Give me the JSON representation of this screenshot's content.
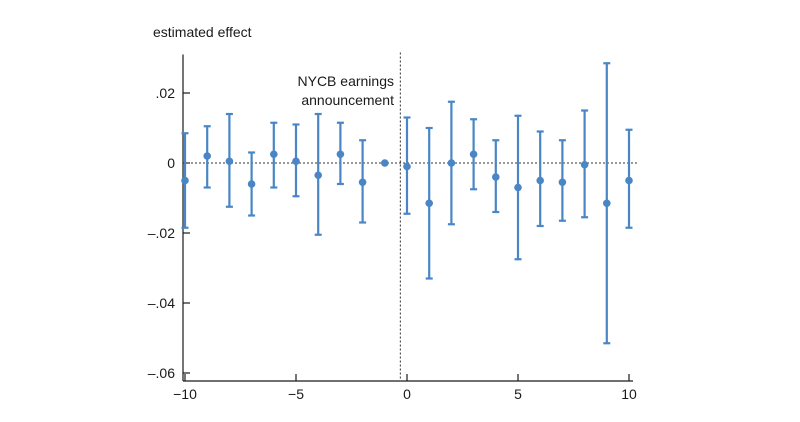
{
  "chart_data": {
    "type": "scatter",
    "title": "",
    "ylabel": "estimated effect",
    "xlabel": "",
    "xlim": [
      -10,
      10
    ],
    "ylim": [
      -0.062,
      0.031
    ],
    "x_ticks": [
      -10,
      -5,
      0,
      5,
      10
    ],
    "x_tick_labels": [
      "−10",
      "−5",
      "0",
      "5",
      "10"
    ],
    "y_ticks": [
      0.02,
      0,
      -0.02,
      -0.04,
      -0.06
    ],
    "y_tick_labels": [
      ".02",
      "0",
      "–.02",
      "–.04",
      "–.06"
    ],
    "reference_line": {
      "y": 0,
      "style": "dotted"
    },
    "event_line": {
      "x": -0.3,
      "style": "dotted"
    },
    "annotation": [
      "NYCB earnings",
      "announcement"
    ],
    "color": "#4a86c5",
    "series": [
      {
        "x": [
          -10,
          -9,
          -8,
          -7,
          -6,
          -5,
          -4,
          -3,
          -2,
          -1,
          0,
          1,
          2,
          3,
          4,
          5,
          6,
          7,
          8,
          9,
          10
        ],
        "y": [
          -0.005,
          0.002,
          0.0005,
          -0.006,
          0.0025,
          0.0005,
          -0.0035,
          0.0025,
          -0.0055,
          0.0,
          -0.001,
          -0.0115,
          0.0,
          0.0025,
          -0.004,
          -0.007,
          -0.005,
          -0.0055,
          -0.0005,
          -0.0115,
          -0.005
        ],
        "lower": [
          -0.0185,
          -0.007,
          -0.0125,
          -0.015,
          -0.007,
          -0.0095,
          -0.0205,
          -0.006,
          -0.017,
          0.0,
          -0.0145,
          -0.033,
          -0.0175,
          -0.0075,
          -0.014,
          -0.0275,
          -0.018,
          -0.0165,
          -0.0155,
          -0.0515,
          -0.0185
        ],
        "upper": [
          0.0085,
          0.0105,
          0.014,
          0.003,
          0.0115,
          0.011,
          0.014,
          0.0115,
          0.0065,
          0.0,
          0.013,
          0.01,
          0.0175,
          0.0125,
          0.0065,
          0.0135,
          0.009,
          0.0065,
          0.015,
          0.0285,
          0.0095
        ]
      }
    ]
  }
}
